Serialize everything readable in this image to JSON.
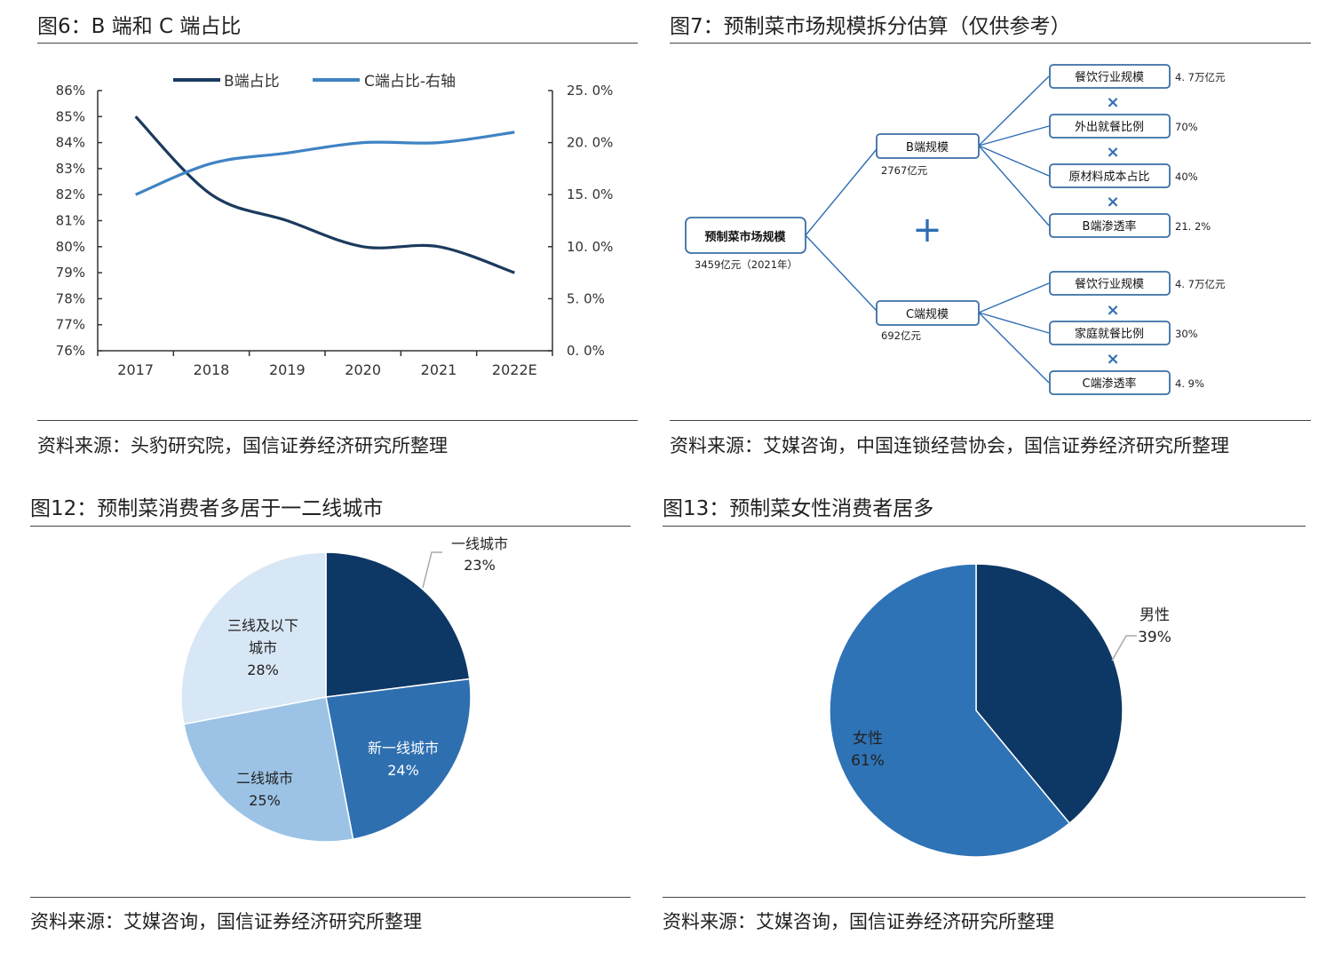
{
  "panels": {
    "fig6": {
      "title": "图6：B 端和 C 端占比",
      "source": "资料来源：头豹研究院，国信证券经济研究所整理"
    },
    "fig7": {
      "title": "图7：预制菜市场规模拆分估算（仅供参考）",
      "source": "资料来源：艾媒咨询，中国连锁经营协会，国信证券经济研究所整理"
    },
    "fig12": {
      "title": "图12：预制菜消费者多居于一二线城市",
      "source": "资料来源：艾媒咨询，国信证券经济研究所整理"
    },
    "fig13": {
      "title": "图13：预制菜女性消费者居多",
      "source": "资料来源：艾媒咨询，国信证券经济研究所整理"
    }
  },
  "chart_data": [
    {
      "type": "line",
      "categories": [
        "2017",
        "2018",
        "2019",
        "2020",
        "2021",
        "2022E"
      ],
      "series": [
        {
          "name": "B端占比",
          "axis": "left",
          "values": [
            85,
            82,
            81,
            80,
            80,
            79
          ],
          "color": "#1b3a5e"
        },
        {
          "name": "C端占比-右轴",
          "axis": "right",
          "values": [
            15.0,
            18.0,
            19.0,
            20.0,
            20.0,
            21.0
          ],
          "color": "#3f83c4"
        }
      ],
      "yleft": {
        "ticks": [
          "86%",
          "85%",
          "84%",
          "83%",
          "82%",
          "81%",
          "80%",
          "79%",
          "78%",
          "77%",
          "76%"
        ],
        "lim": [
          76,
          86
        ]
      },
      "yright": {
        "ticks": [
          "25. 0%",
          "20. 0%",
          "15. 0%",
          "10. 0%",
          "5. 0%",
          "0. 0%"
        ],
        "lim": [
          0,
          25
        ]
      },
      "legend": "top"
    },
    {
      "type": "pie",
      "labels": [
        "一线城市",
        "新一线城市",
        "二线城市",
        "三线及以下城市"
      ],
      "values": [
        23,
        24,
        25,
        28
      ],
      "value_labels": [
        "23%",
        "24%",
        "25%",
        "28%"
      ],
      "colors": [
        "#0d3764",
        "#2e6fb0",
        "#9cc3e6",
        "#d8e7f5"
      ]
    },
    {
      "type": "pie",
      "labels": [
        "男性",
        "女性"
      ],
      "values": [
        39,
        61
      ],
      "value_labels": [
        "39%",
        "61%"
      ],
      "colors": [
        "#0d3764",
        "#2e73b6"
      ]
    }
  ],
  "diagram": {
    "root": {
      "label": "预制菜市场规模",
      "note": "3459亿元（2021年）"
    },
    "plus": "+",
    "times": "×",
    "b": {
      "label": "B端规模",
      "note": "2767亿元",
      "factors": [
        {
          "label": "餐饮行业规模",
          "value": "4. 7万亿元"
        },
        {
          "label": "外出就餐比例",
          "value": "70%"
        },
        {
          "label": "原材料成本占比",
          "value": "40%"
        },
        {
          "label": "B端渗透率",
          "value": "21. 2%"
        }
      ]
    },
    "c": {
      "label": "C端规模",
      "note": "692亿元",
      "factors": [
        {
          "label": "餐饮行业规模",
          "value": "4. 7万亿元"
        },
        {
          "label": "家庭就餐比例",
          "value": "30%"
        },
        {
          "label": "C端渗透率",
          "value": "4. 9%"
        }
      ]
    }
  }
}
